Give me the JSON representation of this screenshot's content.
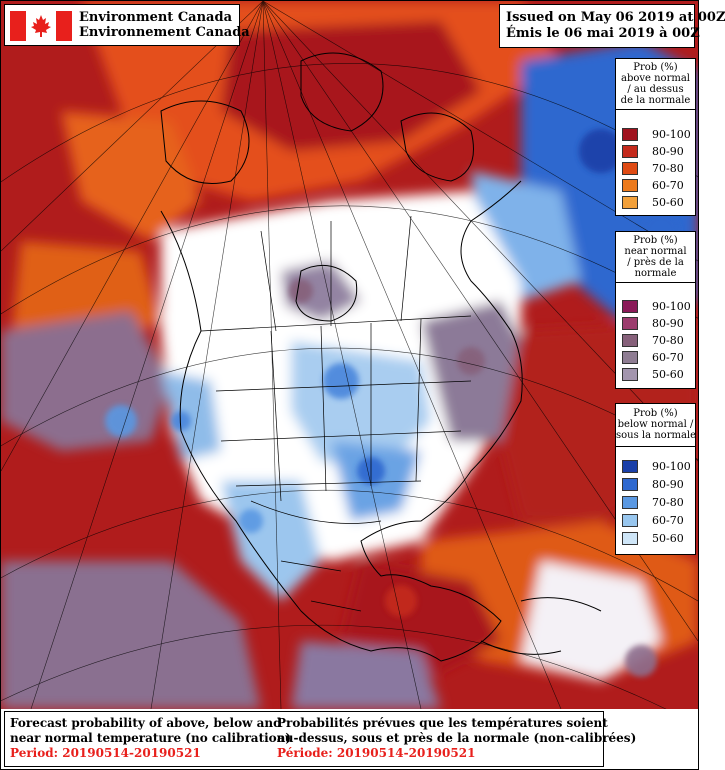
{
  "header": {
    "org_en": "Environment Canada",
    "org_fr": "Environnement Canada",
    "issued_en": "Issued on May 06 2019 at 00Z",
    "issued_fr": "Émis le 06 mai 2019 à 00Z"
  },
  "legends": [
    {
      "title_lines": [
        "Prob (%)",
        "above normal",
        "/ au dessus",
        "de la normale"
      ],
      "items": [
        {
          "label": "90-100",
          "color": "#a0121e"
        },
        {
          "label": "80-90",
          "color": "#c42a1c"
        },
        {
          "label": "70-80",
          "color": "#df4b14"
        },
        {
          "label": "60-70",
          "color": "#ec7a1c"
        },
        {
          "label": "50-60",
          "color": "#f2a03a"
        }
      ]
    },
    {
      "title_lines": [
        "Prob (%)",
        "near normal",
        "/ près de la",
        "normale"
      ],
      "items": [
        {
          "label": "90-100",
          "color": "#8a1a58"
        },
        {
          "label": "80-90",
          "color": "#9c3c6e"
        },
        {
          "label": "70-80",
          "color": "#86607a"
        },
        {
          "label": "60-70",
          "color": "#8f7d93"
        },
        {
          "label": "50-60",
          "color": "#a395ae"
        }
      ]
    },
    {
      "title_lines": [
        "Prob (%)",
        "below normal /",
        "sous la normale"
      ],
      "items": [
        {
          "label": "90-100",
          "color": "#1a3fa8"
        },
        {
          "label": "80-90",
          "color": "#2e68cf"
        },
        {
          "label": "70-80",
          "color": "#5a98e2"
        },
        {
          "label": "60-70",
          "color": "#98c6ee"
        },
        {
          "label": "50-60",
          "color": "#cfe6f8"
        }
      ]
    }
  ],
  "footer": {
    "en_line1": "Forecast probability of above, below and",
    "en_line2": "near normal temperature (no calibration)",
    "en_period": "Period: 20190514-20190521",
    "fr_line1": "Probabilités prévues que les températures soient",
    "fr_line2": "au-dessus, sous et près de la normale (non-calibrées)",
    "fr_period": "Période: 20190514-20190521"
  }
}
